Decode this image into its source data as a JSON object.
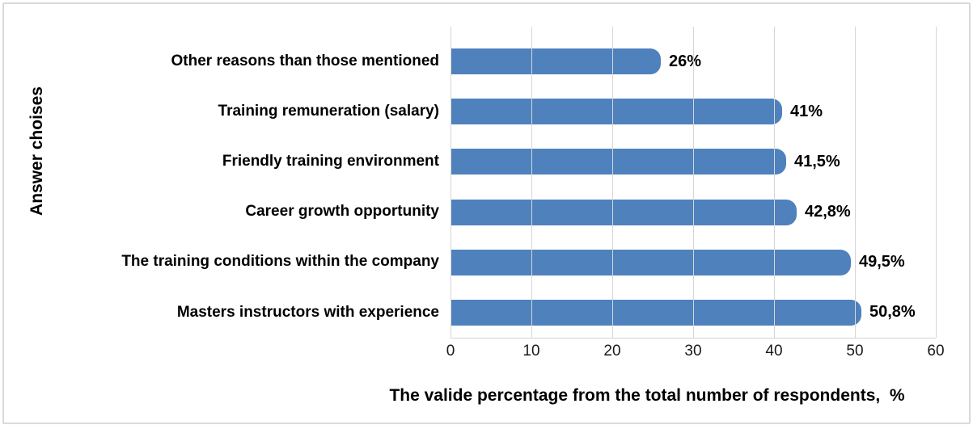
{
  "window": {
    "background_color": "#ffffff",
    "border_color": "#dadada"
  },
  "chart_data": {
    "type": "bar",
    "orientation": "horizontal",
    "title": "",
    "categories": [
      "Other reasons than those mentioned",
      "Training remuneration (salary)",
      "Friendly training environment",
      "Career growth opportunity",
      "The training conditions within the company",
      "Masters instructors with experience"
    ],
    "values": [
      26,
      41,
      41.5,
      42.8,
      49.5,
      50.8
    ],
    "value_labels": [
      "26%",
      "41%",
      "41,5%",
      "42,8%",
      "49,5%",
      "50,8%"
    ],
    "xlabel": "The valide percentage from the total number of respondents,  %",
    "ylabel": "Answer choises",
    "xlim": [
      0,
      60
    ],
    "x_ticks": [
      0,
      10,
      20,
      30,
      40,
      50,
      60
    ],
    "grid": "vertical-major-gridlines",
    "legend": "none",
    "bar_color": "#4F81BD",
    "gridline_color": "#D6D6D6",
    "axis_line_color": "#D3D3D3",
    "text_color": "#000000"
  }
}
